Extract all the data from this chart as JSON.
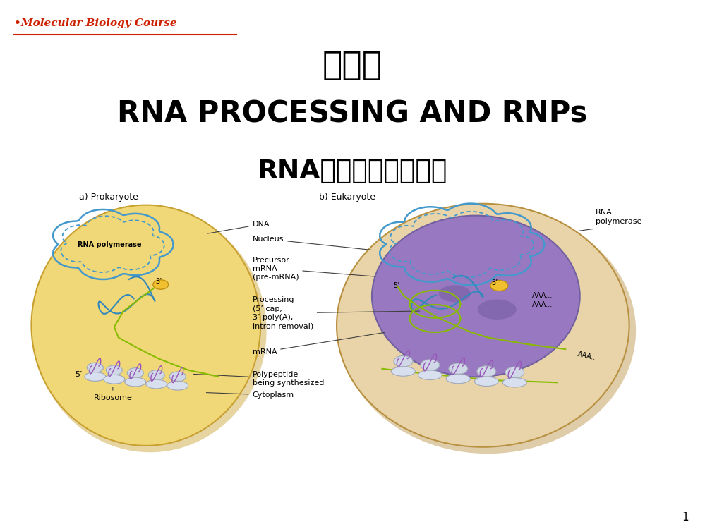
{
  "bg_color": "#ffffff",
  "title_line1": "第七章",
  "title_line2": "RNA PROCESSING AND RNPs",
  "title_line3": "RNA加工和核糖核蛋白",
  "header_text": "•Molecular Biology Course",
  "header_color": "#cc2200",
  "title_color": "#000000",
  "page_number": "1",
  "label_prokaryote": "a) Prokaryote",
  "label_eukaryote": "b) Eukaryote",
  "dna_label": "DNA",
  "nucleus_label": "Nucleus",
  "precursor_label": "Precursor\nmRNA\n(pre-mRNA)",
  "processing_label": "Processing\n(5’ cap,\n3’ poly(A),\nintron removal)",
  "mrna_label": "mRNA",
  "polypeptide_label": "Polypeptide\nbeing synthesized",
  "cytoplasm_label": "Cytoplasm",
  "ribosome_label": "Ribosome",
  "rna_pol_label_euk": "RNA\npolymerase",
  "rna_pol_label_pro": "RNA polymerase",
  "label_5prime_pro": "5’",
  "label_3prime_pro": "3’",
  "label_5prime_euk": "5’",
  "label_3prime_euk": "3’",
  "aaa_label1": "AAA...\nAAA...",
  "aaa_label2": "AAA..",
  "pro_cell_color": "#f0d878",
  "pro_cell_edge": "#c8a030",
  "pro_shadow_color": "#c8a030",
  "euk_cell_color": "#e8d4a8",
  "euk_cell_edge": "#b89040",
  "euk_shadow_color": "#b89040",
  "nucleus_color": "#9878c0",
  "nucleus_edge": "#7060a0",
  "helix_color": "#4499cc",
  "rna_color": "#3388bb",
  "mrna_color": "#88bb00",
  "ribosome_color1": "#d0d8e8",
  "ribosome_color2": "#d8e0f0",
  "ribosome_edge": "#a0a8b8",
  "polypeptide_color": "#9955bb",
  "polymerase_color": "#f0c030",
  "polymerase_edge": "#c09010",
  "annotation_color": "#404040",
  "text_color": "#000000"
}
